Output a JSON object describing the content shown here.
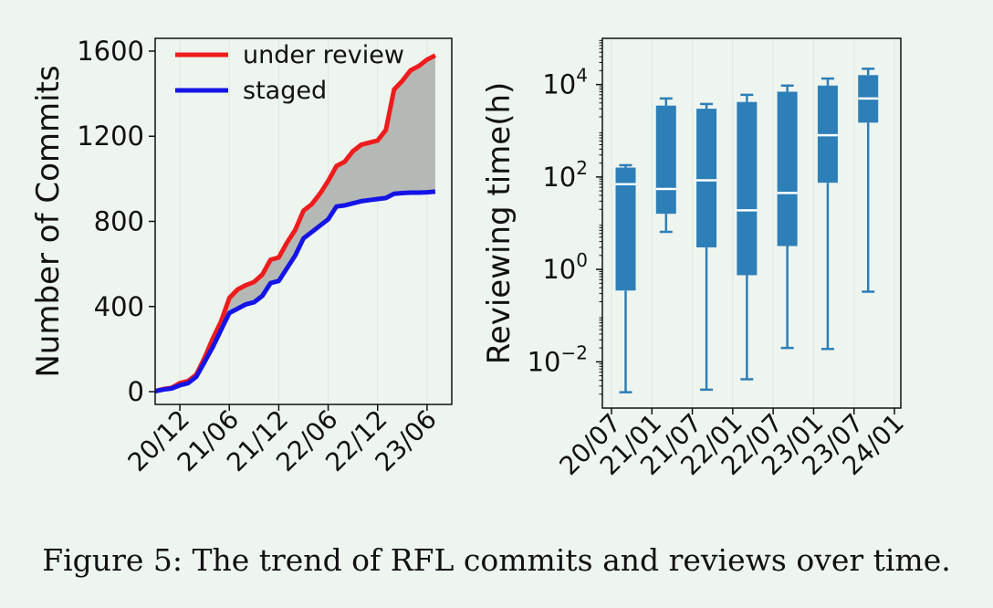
{
  "caption": "Figure 5: The trend of RFL commits and reviews over time.",
  "colors": {
    "under_review": "#ee1c1c",
    "staged": "#1414e6",
    "fill": "#b5b9b5",
    "box": "#2d7fb8",
    "median": "#ffffff",
    "grid": "#dfe5e0"
  },
  "chart_data": [
    {
      "type": "line",
      "ylabel": "Number of Commits",
      "xlabel": "",
      "ylim": [
        -60,
        1660
      ],
      "yticks": [
        0,
        400,
        800,
        1200,
        1600
      ],
      "xlim": [
        0,
        36
      ],
      "xticks": [
        {
          "pos": 3,
          "label": "20/12"
        },
        {
          "pos": 9,
          "label": "21/06"
        },
        {
          "pos": 15,
          "label": "21/12"
        },
        {
          "pos": 21,
          "label": "22/06"
        },
        {
          "pos": 27,
          "label": "22/12"
        },
        {
          "pos": 33,
          "label": "23/06"
        }
      ],
      "grid": "vertical",
      "legend": "top-left",
      "fill_between": true,
      "series": [
        {
          "name": "under review",
          "x": [
            0,
            1,
            2,
            3,
            4,
            5,
            6,
            7,
            8,
            9,
            10,
            11,
            12,
            13,
            14,
            15,
            16,
            17,
            18,
            19,
            20,
            21,
            22,
            23,
            24,
            25,
            26,
            27,
            28,
            29,
            30,
            31,
            32,
            33,
            34
          ],
          "y": [
            2,
            12,
            18,
            40,
            50,
            80,
            160,
            250,
            330,
            440,
            480,
            500,
            515,
            550,
            620,
            630,
            700,
            760,
            850,
            880,
            930,
            990,
            1060,
            1080,
            1130,
            1160,
            1170,
            1180,
            1230,
            1420,
            1460,
            1510,
            1530,
            1560,
            1580
          ]
        },
        {
          "name": "staged",
          "x": [
            0,
            1,
            2,
            3,
            4,
            5,
            6,
            7,
            8,
            9,
            10,
            11,
            12,
            13,
            14,
            15,
            16,
            17,
            18,
            19,
            20,
            21,
            22,
            23,
            24,
            25,
            26,
            27,
            28,
            29,
            30,
            31,
            32,
            33,
            34
          ],
          "y": [
            2,
            10,
            15,
            30,
            40,
            70,
            140,
            210,
            290,
            370,
            390,
            410,
            420,
            450,
            510,
            520,
            580,
            640,
            720,
            750,
            780,
            810,
            870,
            875,
            885,
            895,
            900,
            905,
            910,
            930,
            933,
            935,
            935,
            937,
            940
          ]
        }
      ]
    },
    {
      "type": "box",
      "ylabel": "Reviewing time(h)",
      "xlabel": "",
      "yscale": "log",
      "ylim_log10": [
        -3.0,
        5.0
      ],
      "yticks": [
        {
          "exp": -2,
          "base": "10",
          "sup": "−2"
        },
        {
          "exp": 0,
          "base": "10",
          "sup": "0"
        },
        {
          "exp": 2,
          "base": "10",
          "sup": "2"
        },
        {
          "exp": 4,
          "base": "10",
          "sup": "4"
        }
      ],
      "xticks": [
        "20/07",
        "21/01",
        "21/07",
        "22/01",
        "22/07",
        "23/01",
        "23/07",
        "24/01"
      ],
      "grid": "vertical",
      "boxes": [
        {
          "whislo": 0.0022,
          "q1": 0.35,
          "med": 70,
          "q3": 160,
          "whishi": 180
        },
        {
          "whislo": 6.5,
          "q1": 16,
          "med": 55,
          "q3": 3500,
          "whishi": 5000
        },
        {
          "whislo": 0.0025,
          "q1": 3,
          "med": 85,
          "q3": 3000,
          "whishi": 3800
        },
        {
          "whislo": 0.0042,
          "q1": 0.75,
          "med": 19,
          "q3": 4200,
          "whishi": 6000
        },
        {
          "whislo": 0.02,
          "q1": 3.2,
          "med": 45,
          "q3": 7000,
          "whishi": 9500
        },
        {
          "whislo": 0.019,
          "q1": 75,
          "med": 800,
          "q3": 9500,
          "whishi": 13500
        },
        {
          "whislo": 0.33,
          "q1": 1500,
          "med": 5000,
          "q3": 16000,
          "whishi": 22000
        }
      ]
    }
  ]
}
